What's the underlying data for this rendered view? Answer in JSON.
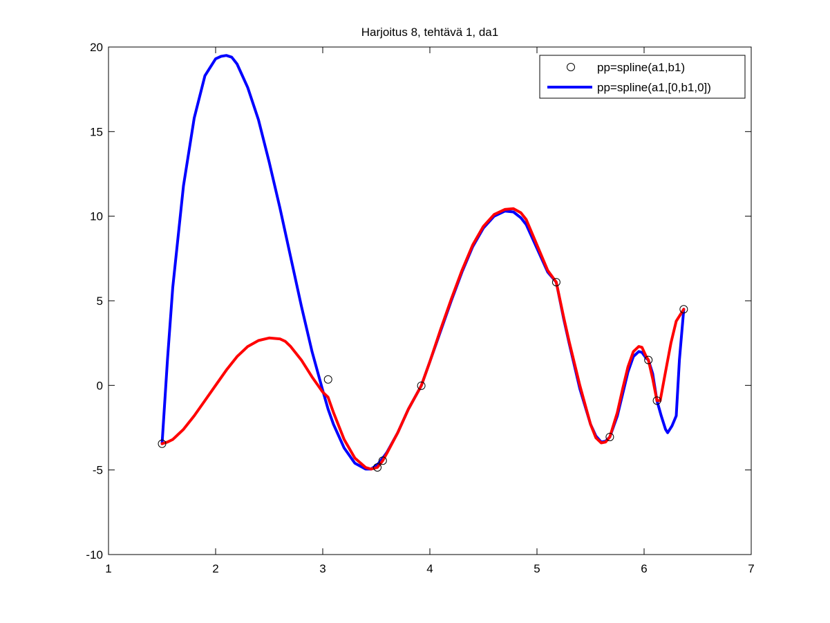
{
  "chart_data": {
    "type": "line",
    "title": "Harjoitus 8, tehtävä 1, da1",
    "xlabel": "",
    "ylabel": "",
    "xlim": [
      1,
      7
    ],
    "ylim": [
      -10,
      20
    ],
    "xticks": [
      1,
      2,
      3,
      4,
      5,
      6,
      7
    ],
    "yticks": [
      -10,
      -5,
      0,
      5,
      10,
      15,
      20
    ],
    "grid": false,
    "legend_position": "top-right",
    "colors": {
      "blue": "#0000ff",
      "red": "#ff0000",
      "marker": "#000000"
    },
    "series": [
      {
        "name": "pp=spline(a1,b1)",
        "style": "markers",
        "x": [
          1.5,
          3.05,
          3.51,
          3.56,
          3.92,
          5.18,
          5.68,
          6.04,
          6.12,
          6.37
        ],
        "y": [
          -3.45,
          0.35,
          -4.85,
          -4.45,
          -0.02,
          6.1,
          -3.05,
          1.5,
          -0.9,
          4.5
        ]
      },
      {
        "name": "pp=spline(a1,[0,b1,0])",
        "style": "line",
        "x": [
          1.5,
          1.55,
          1.6,
          1.7,
          1.8,
          1.9,
          2.0,
          2.05,
          2.1,
          2.15,
          2.2,
          2.3,
          2.4,
          2.5,
          2.6,
          2.7,
          2.8,
          2.9,
          3.0,
          3.05,
          3.1,
          3.2,
          3.3,
          3.4,
          3.45,
          3.51,
          3.56,
          3.6,
          3.7,
          3.8,
          3.92,
          4.0,
          4.1,
          4.2,
          4.3,
          4.4,
          4.5,
          4.6,
          4.7,
          4.78,
          4.85,
          4.9,
          5.0,
          5.1,
          5.18,
          5.25,
          5.3,
          5.4,
          5.5,
          5.55,
          5.6,
          5.64,
          5.68,
          5.75,
          5.8,
          5.85,
          5.9,
          5.95,
          5.98,
          6.02,
          6.04,
          6.08,
          6.12,
          6.16,
          6.2,
          6.22,
          6.26,
          6.3,
          6.33,
          6.37
        ],
        "y": [
          -3.45,
          1.5,
          5.8,
          11.8,
          15.8,
          18.3,
          19.3,
          19.45,
          19.5,
          19.4,
          19.0,
          17.6,
          15.7,
          13.2,
          10.5,
          7.6,
          4.7,
          2.0,
          -0.3,
          -1.4,
          -2.3,
          -3.7,
          -4.6,
          -4.95,
          -4.95,
          -4.7,
          -4.3,
          -3.95,
          -2.8,
          -1.4,
          -0.02,
          1.4,
          3.2,
          5.0,
          6.7,
          8.2,
          9.3,
          10.0,
          10.3,
          10.25,
          9.9,
          9.5,
          8.1,
          6.7,
          6.1,
          3.9,
          2.5,
          -0.2,
          -2.3,
          -3.0,
          -3.35,
          -3.3,
          -3.05,
          -1.8,
          -0.5,
          0.8,
          1.7,
          2.0,
          1.95,
          1.6,
          1.5,
          0.7,
          -0.9,
          -1.8,
          -2.6,
          -2.8,
          -2.4,
          -1.8,
          1.5,
          4.5
        ]
      },
      {
        "name": "",
        "style": "line",
        "x": [
          1.5,
          1.55,
          1.6,
          1.7,
          1.8,
          1.9,
          2.0,
          2.1,
          2.2,
          2.3,
          2.4,
          2.5,
          2.6,
          2.65,
          2.7,
          2.8,
          2.9,
          3.0,
          3.05,
          3.1,
          3.2,
          3.3,
          3.4,
          3.45,
          3.51,
          3.56,
          3.6,
          3.7,
          3.8,
          3.92,
          4.0,
          4.1,
          4.2,
          4.3,
          4.4,
          4.5,
          4.6,
          4.7,
          4.78,
          4.85,
          4.9,
          5.0,
          5.1,
          5.18,
          5.25,
          5.3,
          5.4,
          5.5,
          5.55,
          5.6,
          5.64,
          5.68,
          5.75,
          5.8,
          5.85,
          5.9,
          5.95,
          5.98,
          6.02,
          6.04,
          6.08,
          6.12,
          6.15,
          6.2,
          6.25,
          6.3,
          6.37
        ],
        "y": [
          -3.45,
          -3.35,
          -3.2,
          -2.6,
          -1.8,
          -0.9,
          0.0,
          0.9,
          1.7,
          2.3,
          2.65,
          2.8,
          2.75,
          2.6,
          2.3,
          1.5,
          0.5,
          -0.4,
          -0.7,
          -1.6,
          -3.2,
          -4.3,
          -4.85,
          -4.95,
          -4.85,
          -4.45,
          -4.0,
          -2.8,
          -1.4,
          -0.02,
          1.4,
          3.3,
          5.1,
          6.8,
          8.3,
          9.4,
          10.1,
          10.4,
          10.45,
          10.2,
          9.8,
          8.3,
          6.8,
          6.1,
          4.0,
          2.6,
          0.0,
          -2.3,
          -3.1,
          -3.4,
          -3.35,
          -3.05,
          -1.6,
          -0.2,
          1.1,
          2.0,
          2.3,
          2.25,
          1.7,
          1.5,
          0.4,
          -0.9,
          -0.9,
          0.8,
          2.5,
          3.8,
          4.5
        ]
      }
    ]
  }
}
